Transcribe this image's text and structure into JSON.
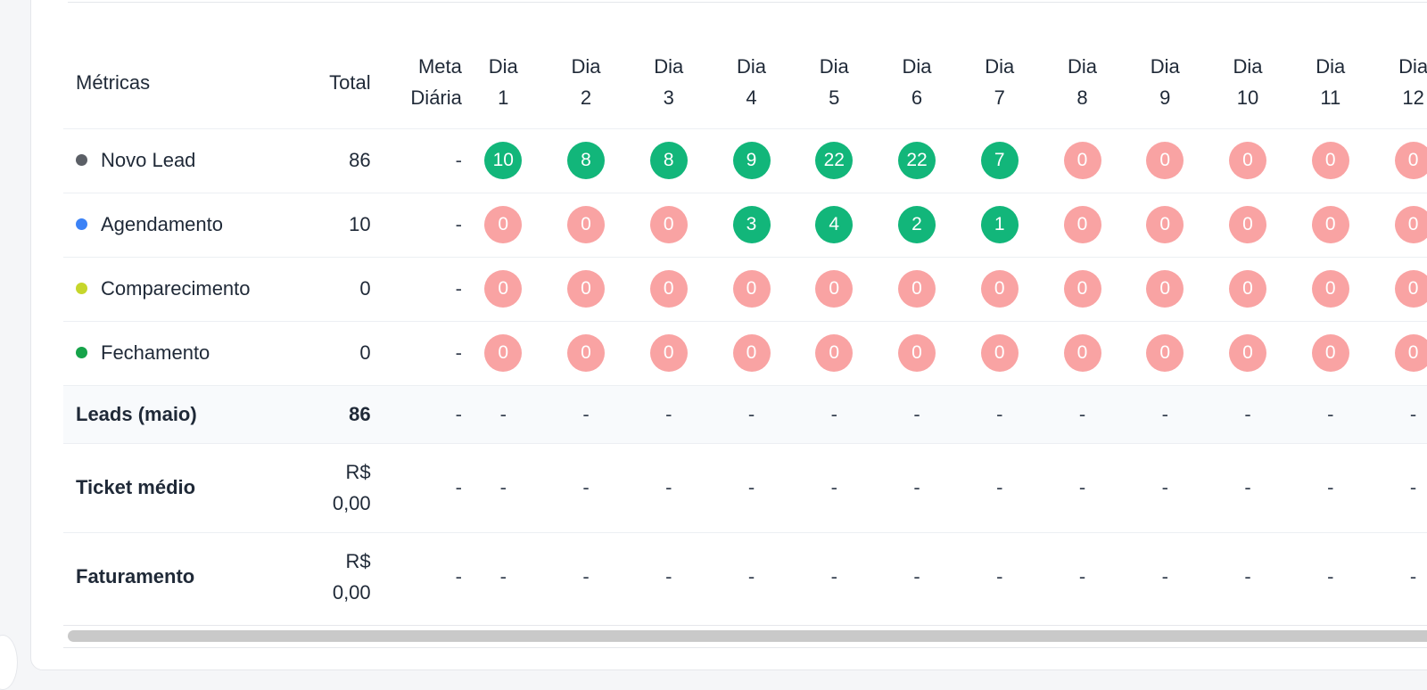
{
  "headers": {
    "metricas": "Métricas",
    "total": "Total",
    "meta_line1": "Meta",
    "meta_line2": "Diária",
    "day_word": "Dia",
    "days": [
      "1",
      "2",
      "3",
      "4",
      "5",
      "6",
      "7",
      "8",
      "9",
      "10",
      "11",
      "12"
    ]
  },
  "metrics": [
    {
      "name": "Novo Lead",
      "dot_color": "#5b5f66",
      "total": "86",
      "meta": "-",
      "values": [
        "10",
        "8",
        "8",
        "9",
        "22",
        "22",
        "7",
        "0",
        "0",
        "0",
        "0",
        "0"
      ]
    },
    {
      "name": "Agendamento",
      "dot_color": "#3b82f6",
      "total": "10",
      "meta": "-",
      "values": [
        "0",
        "0",
        "0",
        "3",
        "4",
        "2",
        "1",
        "0",
        "0",
        "0",
        "0",
        "0"
      ]
    },
    {
      "name": "Comparecimento",
      "dot_color": "#c6d62b",
      "total": "0",
      "meta": "-",
      "values": [
        "0",
        "0",
        "0",
        "0",
        "0",
        "0",
        "0",
        "0",
        "0",
        "0",
        "0",
        "0"
      ]
    },
    {
      "name": "Fechamento",
      "dot_color": "#16a34a",
      "total": "0",
      "meta": "-",
      "values": [
        "0",
        "0",
        "0",
        "0",
        "0",
        "0",
        "0",
        "0",
        "0",
        "0",
        "0",
        "0"
      ]
    }
  ],
  "summary": [
    {
      "name": "Leads (maio)",
      "total_line1": "86",
      "total_line2": "",
      "meta": "-",
      "values": [
        "-",
        "-",
        "-",
        "-",
        "-",
        "-",
        "-",
        "-",
        "-",
        "-",
        "-",
        "-"
      ]
    },
    {
      "name": "Ticket médio",
      "total_line1": "R$",
      "total_line2": "0,00",
      "meta": "-",
      "values": [
        "-",
        "-",
        "-",
        "-",
        "-",
        "-",
        "-",
        "-",
        "-",
        "-",
        "-",
        "-"
      ]
    },
    {
      "name": "Faturamento",
      "total_line1": "R$",
      "total_line2": "0,00",
      "meta": "-",
      "values": [
        "-",
        "-",
        "-",
        "-",
        "-",
        "-",
        "-",
        "-",
        "-",
        "-",
        "-",
        "-"
      ]
    }
  ],
  "colors": {
    "positive": "#12b67a",
    "zero": "#f9a3a3"
  }
}
